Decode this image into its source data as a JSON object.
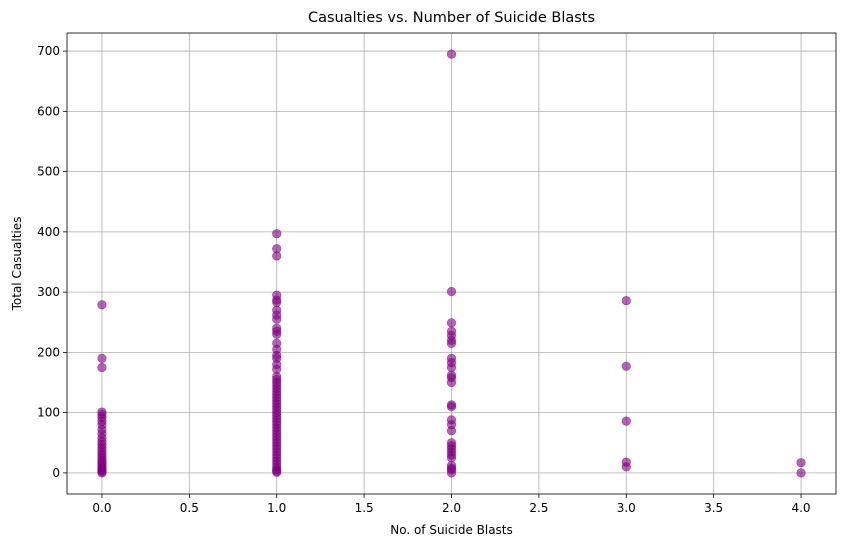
{
  "chart_data": {
    "type": "scatter",
    "title": "Casualties vs. Number of Suicide Blasts",
    "xlabel": "No. of Suicide Blasts",
    "ylabel": "Total Casualties",
    "xlim": [
      -0.2,
      4.2
    ],
    "ylim": [
      -35,
      730
    ],
    "xticks": [
      0.0,
      0.5,
      1.0,
      1.5,
      2.0,
      2.5,
      3.0,
      3.5,
      4.0
    ],
    "xtick_labels": [
      "0.0",
      "0.5",
      "1.0",
      "1.5",
      "2.0",
      "2.5",
      "3.0",
      "3.5",
      "4.0"
    ],
    "yticks": [
      0,
      100,
      200,
      300,
      400,
      500,
      600,
      700
    ],
    "ytick_labels": [
      "0",
      "100",
      "200",
      "300",
      "400",
      "500",
      "600",
      "700"
    ],
    "grid": true,
    "marker_color": "#800080",
    "marker_alpha": 0.6,
    "points": [
      {
        "x": 0,
        "y": 279
      },
      {
        "x": 0,
        "y": 190
      },
      {
        "x": 0,
        "y": 175
      },
      {
        "x": 0,
        "y": 101
      },
      {
        "x": 0,
        "y": 97
      },
      {
        "x": 0,
        "y": 92
      },
      {
        "x": 0,
        "y": 86
      },
      {
        "x": 0,
        "y": 80
      },
      {
        "x": 0,
        "y": 72
      },
      {
        "x": 0,
        "y": 65
      },
      {
        "x": 0,
        "y": 58
      },
      {
        "x": 0,
        "y": 52
      },
      {
        "x": 0,
        "y": 47
      },
      {
        "x": 0,
        "y": 42
      },
      {
        "x": 0,
        "y": 37
      },
      {
        "x": 0,
        "y": 32
      },
      {
        "x": 0,
        "y": 28
      },
      {
        "x": 0,
        "y": 24
      },
      {
        "x": 0,
        "y": 20
      },
      {
        "x": 0,
        "y": 17
      },
      {
        "x": 0,
        "y": 14
      },
      {
        "x": 0,
        "y": 11
      },
      {
        "x": 0,
        "y": 8
      },
      {
        "x": 0,
        "y": 6
      },
      {
        "x": 0,
        "y": 4
      },
      {
        "x": 0,
        "y": 2
      },
      {
        "x": 0,
        "y": 0
      },
      {
        "x": 1,
        "y": 397
      },
      {
        "x": 1,
        "y": 372
      },
      {
        "x": 1,
        "y": 360
      },
      {
        "x": 1,
        "y": 295
      },
      {
        "x": 1,
        "y": 287
      },
      {
        "x": 1,
        "y": 283
      },
      {
        "x": 1,
        "y": 270
      },
      {
        "x": 1,
        "y": 262
      },
      {
        "x": 1,
        "y": 255
      },
      {
        "x": 1,
        "y": 240
      },
      {
        "x": 1,
        "y": 235
      },
      {
        "x": 1,
        "y": 230
      },
      {
        "x": 1,
        "y": 215
      },
      {
        "x": 1,
        "y": 205
      },
      {
        "x": 1,
        "y": 195
      },
      {
        "x": 1,
        "y": 190
      },
      {
        "x": 1,
        "y": 180
      },
      {
        "x": 1,
        "y": 172
      },
      {
        "x": 1,
        "y": 160
      },
      {
        "x": 1,
        "y": 155
      },
      {
        "x": 1,
        "y": 150
      },
      {
        "x": 1,
        "y": 145
      },
      {
        "x": 1,
        "y": 140
      },
      {
        "x": 1,
        "y": 135
      },
      {
        "x": 1,
        "y": 130
      },
      {
        "x": 1,
        "y": 125
      },
      {
        "x": 1,
        "y": 120
      },
      {
        "x": 1,
        "y": 115
      },
      {
        "x": 1,
        "y": 110
      },
      {
        "x": 1,
        "y": 105
      },
      {
        "x": 1,
        "y": 100
      },
      {
        "x": 1,
        "y": 95
      },
      {
        "x": 1,
        "y": 90
      },
      {
        "x": 1,
        "y": 85
      },
      {
        "x": 1,
        "y": 80
      },
      {
        "x": 1,
        "y": 75
      },
      {
        "x": 1,
        "y": 70
      },
      {
        "x": 1,
        "y": 65
      },
      {
        "x": 1,
        "y": 60
      },
      {
        "x": 1,
        "y": 55
      },
      {
        "x": 1,
        "y": 50
      },
      {
        "x": 1,
        "y": 45
      },
      {
        "x": 1,
        "y": 40
      },
      {
        "x": 1,
        "y": 35
      },
      {
        "x": 1,
        "y": 30
      },
      {
        "x": 1,
        "y": 25
      },
      {
        "x": 1,
        "y": 20
      },
      {
        "x": 1,
        "y": 15
      },
      {
        "x": 1,
        "y": 10
      },
      {
        "x": 1,
        "y": 6
      },
      {
        "x": 1,
        "y": 3
      },
      {
        "x": 1,
        "y": 1
      },
      {
        "x": 2,
        "y": 695
      },
      {
        "x": 2,
        "y": 301
      },
      {
        "x": 2,
        "y": 249
      },
      {
        "x": 2,
        "y": 235
      },
      {
        "x": 2,
        "y": 228
      },
      {
        "x": 2,
        "y": 220
      },
      {
        "x": 2,
        "y": 215
      },
      {
        "x": 2,
        "y": 190
      },
      {
        "x": 2,
        "y": 183
      },
      {
        "x": 2,
        "y": 175
      },
      {
        "x": 2,
        "y": 162
      },
      {
        "x": 2,
        "y": 158
      },
      {
        "x": 2,
        "y": 150
      },
      {
        "x": 2,
        "y": 113
      },
      {
        "x": 2,
        "y": 110
      },
      {
        "x": 2,
        "y": 88
      },
      {
        "x": 2,
        "y": 80
      },
      {
        "x": 2,
        "y": 70
      },
      {
        "x": 2,
        "y": 50
      },
      {
        "x": 2,
        "y": 45
      },
      {
        "x": 2,
        "y": 40
      },
      {
        "x": 2,
        "y": 35
      },
      {
        "x": 2,
        "y": 30
      },
      {
        "x": 2,
        "y": 25
      },
      {
        "x": 2,
        "y": 12
      },
      {
        "x": 2,
        "y": 8
      },
      {
        "x": 2,
        "y": 5
      },
      {
        "x": 2,
        "y": 0
      },
      {
        "x": 3,
        "y": 286
      },
      {
        "x": 3,
        "y": 177
      },
      {
        "x": 3,
        "y": 86
      },
      {
        "x": 3,
        "y": 18
      },
      {
        "x": 3,
        "y": 10
      },
      {
        "x": 4,
        "y": 17
      },
      {
        "x": 4,
        "y": 0
      }
    ]
  }
}
